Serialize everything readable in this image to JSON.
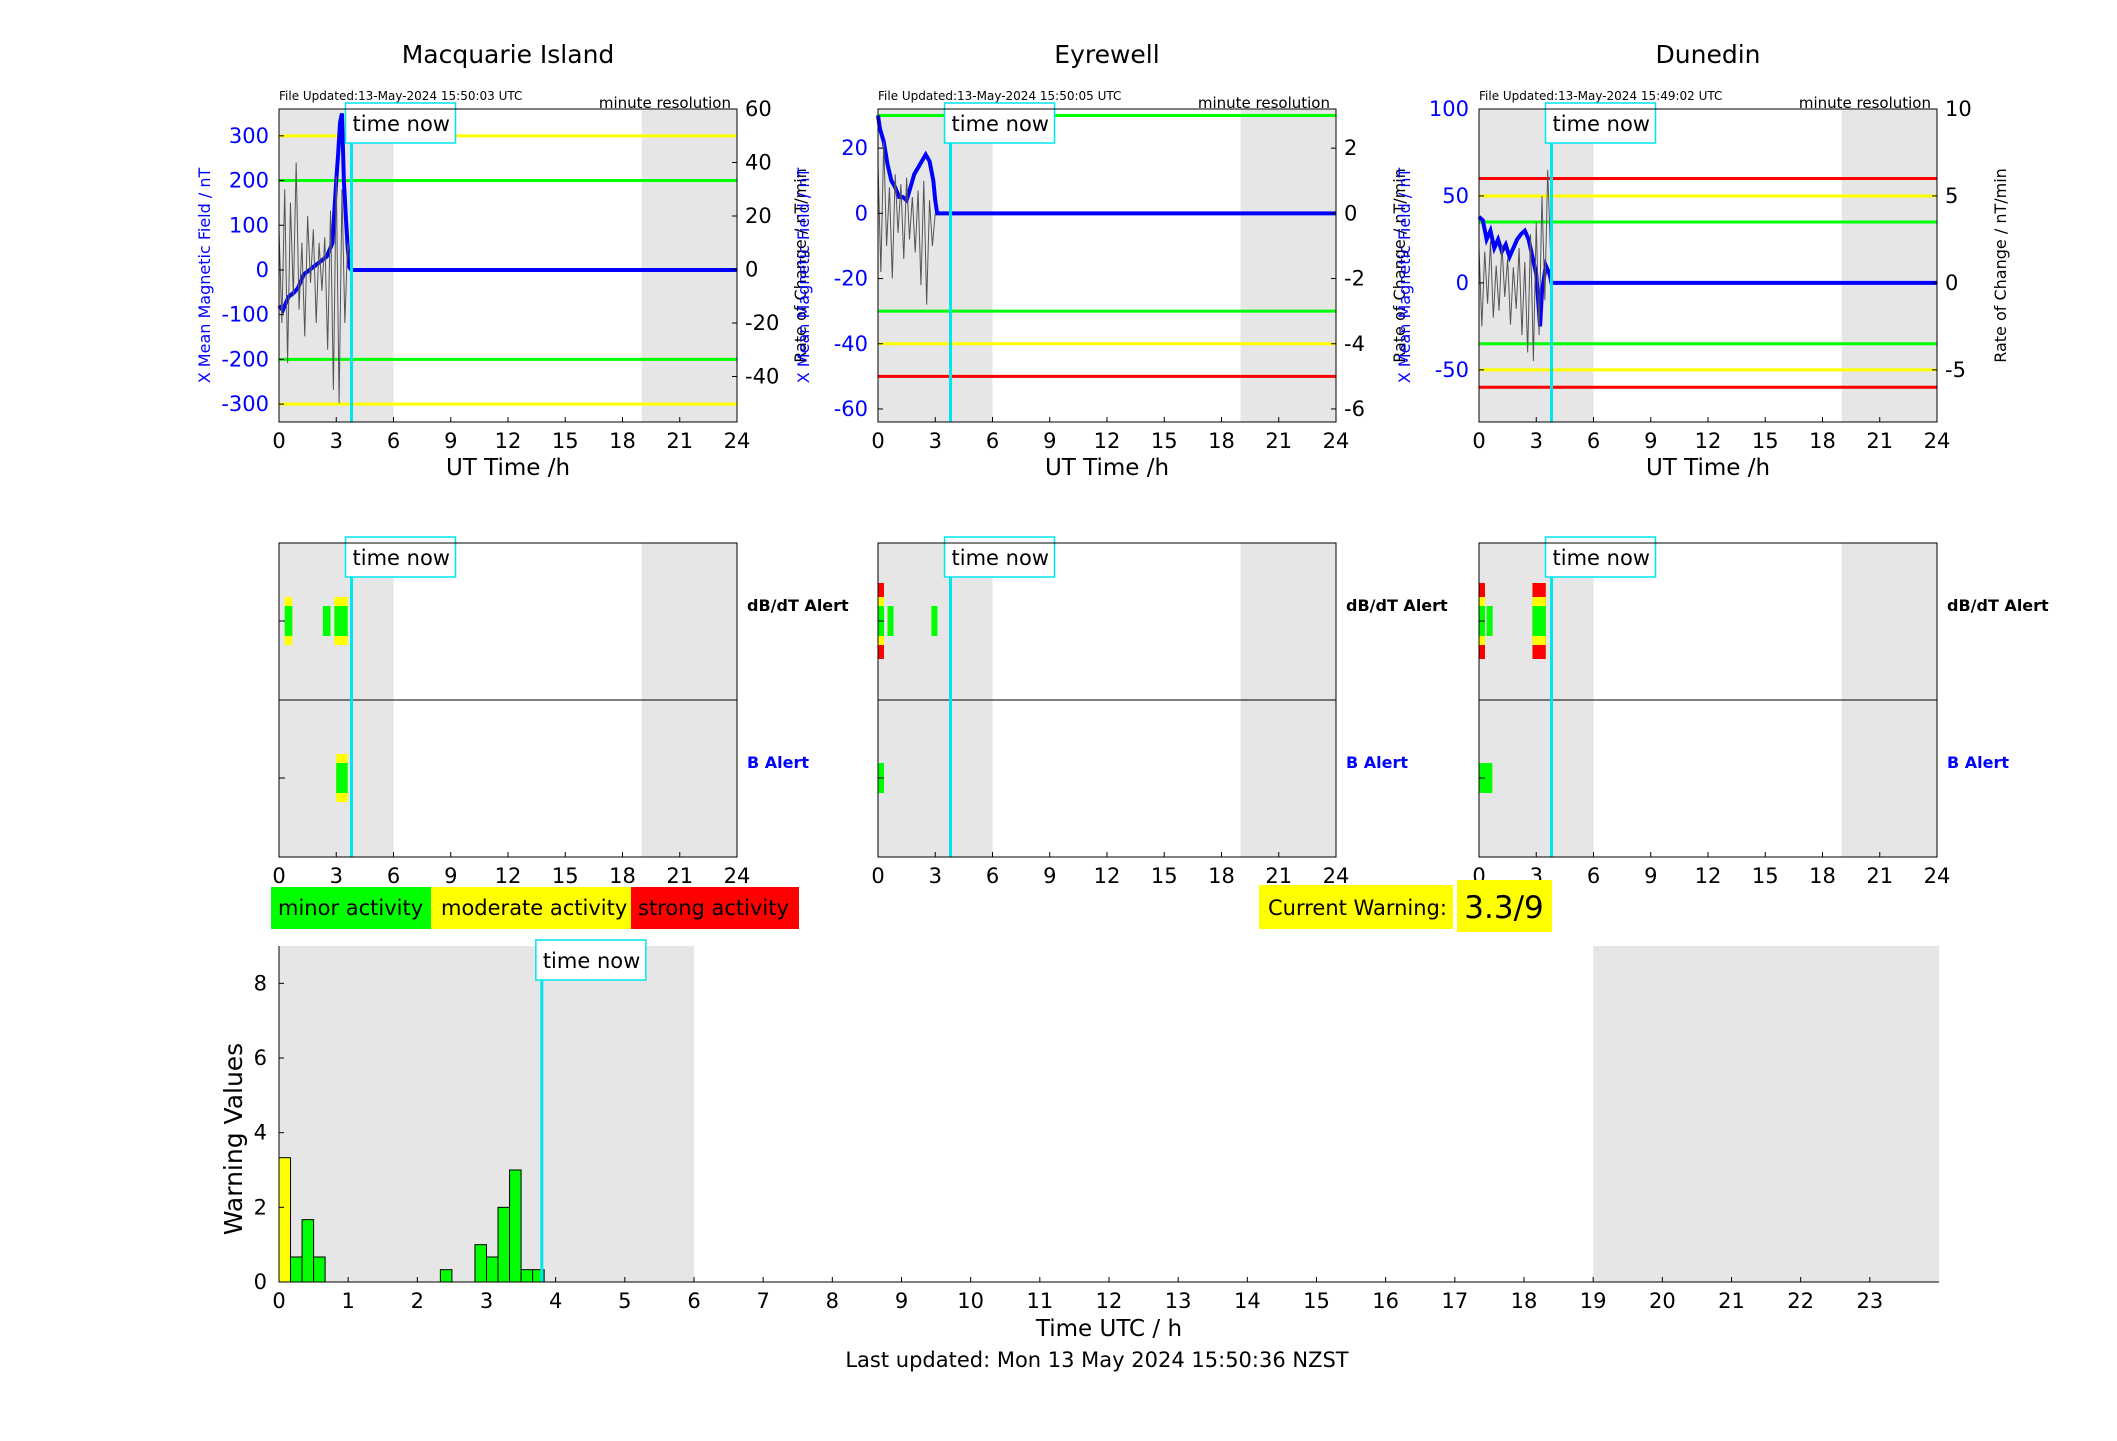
{
  "chart_data": [
    {
      "type": "line",
      "title": "Macquarie Island",
      "file_updated": "File Updated:13-May-2024 15:50:03 UTC",
      "resolution": "minute resolution",
      "xlabel": "UT Time /h",
      "ylabel_left": "X Mean Magnetic Field / nT",
      "ylabel_right": "Rate of Change / nT/min",
      "xlim": [
        0,
        24
      ],
      "xticks": [
        0,
        3,
        6,
        9,
        12,
        15,
        18,
        21,
        24
      ],
      "ylim_left": [
        -340,
        360
      ],
      "yticks_left": [
        -300,
        -200,
        -100,
        0,
        100,
        200,
        300
      ],
      "ylim_right": [
        -57,
        60
      ],
      "yticks_right": [
        -40,
        -20,
        0,
        20,
        40,
        60
      ],
      "night_shading": [
        [
          0,
          6
        ],
        [
          19,
          24
        ]
      ],
      "threshold_lines": [
        {
          "y": 300,
          "color": "#ffff00"
        },
        {
          "y": 200,
          "color": "#00ff00"
        },
        {
          "y": -200,
          "color": "#00ff00"
        },
        {
          "y": -300,
          "color": "#ffff00"
        }
      ],
      "time_now": 3.8,
      "time_now_label": "time now",
      "series": [
        {
          "role": "field",
          "color": "#0000ff",
          "x": [
            0,
            0.2,
            0.5,
            0.8,
            1.0,
            1.3,
            1.6,
            1.9,
            2.2,
            2.5,
            2.8,
            3.0,
            3.1,
            3.2,
            3.3,
            3.4,
            3.5,
            3.6,
            3.7,
            3.8,
            24
          ],
          "y": [
            -80,
            -90,
            -60,
            -50,
            -40,
            -10,
            0,
            10,
            20,
            30,
            60,
            200,
            260,
            330,
            350,
            200,
            120,
            50,
            5,
            0,
            0
          ]
        },
        {
          "role": "rate",
          "color": "#555555",
          "x": [
            0,
            0.15,
            0.3,
            0.45,
            0.6,
            0.75,
            0.9,
            1.05,
            1.2,
            1.35,
            1.5,
            1.65,
            1.8,
            1.95,
            2.1,
            2.25,
            2.4,
            2.55,
            2.7,
            2.85,
            3.0,
            3.15,
            3.3,
            3.45,
            3.6,
            3.8
          ],
          "y": [
            15,
            -20,
            30,
            -35,
            25,
            -10,
            40,
            -15,
            10,
            -25,
            20,
            -5,
            15,
            -20,
            10,
            -8,
            12,
            -30,
            22,
            -45,
            35,
            -50,
            30,
            -20,
            10,
            0
          ]
        }
      ]
    },
    {
      "type": "line",
      "title": "Eyrewell",
      "file_updated": "File Updated:13-May-2024 15:50:05 UTC",
      "resolution": "minute resolution",
      "xlabel": "UT Time /h",
      "ylabel_left": "X Mean Magnetic Field / nT",
      "ylabel_right": "Rate of Change / nT/min",
      "xlim": [
        0,
        24
      ],
      "xticks": [
        0,
        3,
        6,
        9,
        12,
        15,
        18,
        21,
        24
      ],
      "ylim_left": [
        -64,
        32
      ],
      "yticks_left": [
        -60,
        -40,
        -20,
        0,
        20
      ],
      "ylim_right": [
        -6.4,
        3.2
      ],
      "yticks_right": [
        -6,
        -4,
        -2,
        0,
        2
      ],
      "night_shading": [
        [
          0,
          6
        ],
        [
          19,
          24
        ]
      ],
      "threshold_lines": [
        {
          "y": 30,
          "color": "#00ff00"
        },
        {
          "y": -30,
          "color": "#00ff00"
        },
        {
          "y": -40,
          "color": "#ffff00"
        },
        {
          "y": -50,
          "color": "#ff0000"
        }
      ],
      "time_now": 3.8,
      "time_now_label": "time now",
      "series": [
        {
          "role": "field",
          "color": "#0000ff",
          "x": [
            0,
            0.1,
            0.3,
            0.5,
            0.7,
            0.9,
            1.1,
            1.3,
            1.5,
            1.7,
            1.9,
            2.1,
            2.3,
            2.5,
            2.7,
            2.9,
            3.0,
            3.1,
            3.3,
            24
          ],
          "y": [
            30,
            26,
            22,
            15,
            10,
            8,
            5,
            5,
            4,
            8,
            12,
            14,
            16,
            18,
            16,
            10,
            4,
            0,
            0,
            0
          ]
        },
        {
          "role": "rate",
          "color": "#555555",
          "x": [
            0,
            0.15,
            0.3,
            0.45,
            0.6,
            0.75,
            0.9,
            1.05,
            1.2,
            1.35,
            1.5,
            1.65,
            1.8,
            1.95,
            2.1,
            2.25,
            2.4,
            2.55,
            2.7,
            2.85,
            3.0
          ],
          "y": [
            1.5,
            -1.8,
            2.2,
            -1.0,
            0.8,
            -2.0,
            1.2,
            -0.6,
            0.9,
            -1.4,
            1.1,
            -0.8,
            0.5,
            -1.2,
            0.7,
            -2.2,
            1.0,
            -2.8,
            0.4,
            -1.0,
            0
          ]
        }
      ]
    },
    {
      "type": "line",
      "title": "Dunedin",
      "file_updated": "File Updated:13-May-2024 15:49:02 UTC",
      "resolution": "minute resolution",
      "xlabel": "UT Time /h",
      "ylabel_left": "X Mean Magnetic Field / nT",
      "ylabel_right": "Rate of Change / nT/min",
      "xlim": [
        0,
        24
      ],
      "xticks": [
        0,
        3,
        6,
        9,
        12,
        15,
        18,
        21,
        24
      ],
      "ylim_left": [
        -80,
        100
      ],
      "yticks_left": [
        -50,
        0,
        50,
        100
      ],
      "ylim_right": [
        -8,
        10
      ],
      "yticks_right": [
        -5,
        0,
        5,
        10
      ],
      "night_shading": [
        [
          0,
          6
        ],
        [
          19,
          24
        ]
      ],
      "threshold_lines": [
        {
          "y": 60,
          "color": "#ff0000"
        },
        {
          "y": 50,
          "color": "#ffff00"
        },
        {
          "y": 35,
          "color": "#00ff00"
        },
        {
          "y": -35,
          "color": "#00ff00"
        },
        {
          "y": -50,
          "color": "#ffff00"
        },
        {
          "y": -60,
          "color": "#ff0000"
        }
      ],
      "time_now": 3.8,
      "time_now_label": "time now",
      "series": [
        {
          "role": "field",
          "color": "#0000ff",
          "x": [
            0,
            0.2,
            0.4,
            0.6,
            0.8,
            1.0,
            1.2,
            1.4,
            1.6,
            1.8,
            2.0,
            2.2,
            2.4,
            2.6,
            2.8,
            3.0,
            3.1,
            3.2,
            3.3,
            3.5,
            3.7,
            3.8,
            24
          ],
          "y": [
            38,
            36,
            25,
            30,
            20,
            25,
            18,
            22,
            15,
            20,
            25,
            28,
            30,
            25,
            15,
            5,
            -10,
            -25,
            -5,
            10,
            5,
            0,
            0
          ]
        },
        {
          "role": "rate",
          "color": "#555555",
          "x": [
            0,
            0.15,
            0.3,
            0.45,
            0.6,
            0.75,
            0.9,
            1.05,
            1.2,
            1.35,
            1.5,
            1.65,
            1.8,
            1.95,
            2.1,
            2.25,
            2.4,
            2.55,
            2.7,
            2.85,
            3.0,
            3.15,
            3.3,
            3.45,
            3.6,
            3.8
          ],
          "y": [
            2.0,
            -2.5,
            1.8,
            -1.2,
            2.4,
            -2.0,
            1.0,
            -1.6,
            2.2,
            -0.8,
            1.4,
            -2.4,
            0.9,
            -1.5,
            2.0,
            -3.0,
            1.2,
            -4.0,
            2.8,
            -4.5,
            3.5,
            -3.0,
            5.0,
            -1.0,
            6.5,
            0
          ]
        }
      ]
    },
    {
      "type": "bar",
      "title": "",
      "xlabel": "Time UTC / h",
      "ylabel": "Warning Values",
      "xlim": [
        0,
        24
      ],
      "xticks": [
        0,
        1,
        2,
        3,
        4,
        5,
        6,
        7,
        8,
        9,
        10,
        11,
        12,
        13,
        14,
        15,
        16,
        17,
        18,
        19,
        20,
        21,
        22,
        23
      ],
      "ylim": [
        0,
        9
      ],
      "yticks": [
        0,
        2,
        4,
        6,
        8
      ],
      "night_shading": [
        [
          0,
          6
        ],
        [
          19,
          24
        ]
      ],
      "time_now": 3.8,
      "time_now_label": "time now",
      "bar_width": 0.1667,
      "bars": [
        {
          "x": 0.0,
          "value": 3.33,
          "color": "#ffff00"
        },
        {
          "x": 0.1667,
          "value": 0.67,
          "color": "#00ff00"
        },
        {
          "x": 0.3333,
          "value": 1.67,
          "color": "#00ff00"
        },
        {
          "x": 0.5,
          "value": 0.67,
          "color": "#00ff00"
        },
        {
          "x": 2.3333,
          "value": 0.33,
          "color": "#00ff00"
        },
        {
          "x": 2.8333,
          "value": 1.0,
          "color": "#00ff00"
        },
        {
          "x": 3.0,
          "value": 0.67,
          "color": "#00ff00"
        },
        {
          "x": 3.1667,
          "value": 2.0,
          "color": "#00ff00"
        },
        {
          "x": 3.3333,
          "value": 3.0,
          "color": "#00ff00"
        },
        {
          "x": 3.5,
          "value": 0.33,
          "color": "#00ff00"
        },
        {
          "x": 3.6667,
          "value": 0.33,
          "color": "#00ff00"
        }
      ]
    }
  ],
  "alerts": [
    {
      "station": "Macquarie Island",
      "xlim": [
        0,
        24
      ],
      "xticks": [
        0,
        3,
        6,
        9,
        12,
        15,
        18,
        21,
        24
      ],
      "night_shading": [
        [
          0,
          6
        ],
        [
          19,
          24
        ]
      ],
      "time_now": 3.8,
      "time_now_label": "time now",
      "dbdt_label": "dB/dT Alert",
      "b_label": "B Alert",
      "dbdt_segments": [
        {
          "x0": 0.3,
          "x1": 0.7,
          "level": "moderate"
        },
        {
          "x0": 2.3,
          "x1": 2.7,
          "level": "minor"
        },
        {
          "x0": 2.9,
          "x1": 3.6,
          "level": "moderate"
        }
      ],
      "b_segments": [
        {
          "x0": 3.0,
          "x1": 3.6,
          "level": "moderate"
        }
      ]
    },
    {
      "station": "Eyrewell",
      "xlim": [
        0,
        24
      ],
      "xticks": [
        0,
        3,
        6,
        9,
        12,
        15,
        18,
        21,
        24
      ],
      "night_shading": [
        [
          0,
          6
        ],
        [
          19,
          24
        ]
      ],
      "time_now": 3.8,
      "time_now_label": "time now",
      "dbdt_label": "dB/dT Alert",
      "b_label": "B Alert",
      "dbdt_segments": [
        {
          "x0": 0.0,
          "x1": 0.3,
          "level": "strong"
        },
        {
          "x0": 0.5,
          "x1": 0.8,
          "level": "minor"
        },
        {
          "x0": 2.8,
          "x1": 3.1,
          "level": "minor"
        }
      ],
      "b_segments": [
        {
          "x0": 0.0,
          "x1": 0.3,
          "level": "minor"
        }
      ]
    },
    {
      "station": "Dunedin",
      "xlim": [
        0,
        24
      ],
      "xticks": [
        0,
        3,
        6,
        9,
        12,
        15,
        18,
        21,
        24
      ],
      "night_shading": [
        [
          0,
          6
        ],
        [
          19,
          24
        ]
      ],
      "time_now": 3.8,
      "time_now_label": "time now",
      "dbdt_label": "dB/dT Alert",
      "b_label": "B Alert",
      "dbdt_segments": [
        {
          "x0": 0.0,
          "x1": 0.3,
          "level": "strong"
        },
        {
          "x0": 0.4,
          "x1": 0.7,
          "level": "minor"
        },
        {
          "x0": 2.8,
          "x1": 3.5,
          "level": "strong"
        }
      ],
      "b_segments": [
        {
          "x0": 0.0,
          "x1": 0.7,
          "level": "minor"
        }
      ]
    }
  ],
  "legend": {
    "minor_label": "minor activity",
    "moderate_label": "moderate activity",
    "strong_label": "strong activity",
    "minor_color": "#00ff00",
    "moderate_color": "#ffff00",
    "strong_color": "#ff0000"
  },
  "current_warning": {
    "label": "Current Warning:",
    "value": "3.3/9"
  },
  "footer": {
    "last_updated": "Last updated: Mon 13 May 2024 15:50:36 NZST"
  },
  "colors": {
    "field_line": "#0000ff",
    "rate_line": "#555555",
    "time_now_line": "#00e5ee",
    "night_shading": "#e6e6e6"
  }
}
